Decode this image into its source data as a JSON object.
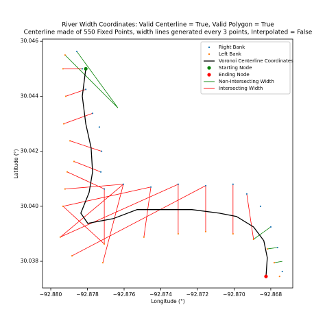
{
  "chart_data": {
    "type": "scatter",
    "title": "River Width Coordinates: Valid Centerline = True, Valid Polygon = True",
    "subtitle": "Centerline made of 550 Fixed Points, width lines generated every 3 points, Interpolated = False",
    "x_label": "Longitude (°)",
    "y_label": "Latitude (°)",
    "xlim": [
      -92.88045,
      -92.8668
    ],
    "ylim": [
      30.03703,
      30.04608
    ],
    "xticks": [
      {
        "value": -92.88,
        "label": "−92.880"
      },
      {
        "value": -92.878,
        "label": "−92.878"
      },
      {
        "value": -92.876,
        "label": "−92.876"
      },
      {
        "value": -92.874,
        "label": "−92.874"
      },
      {
        "value": -92.872,
        "label": "−92.872"
      },
      {
        "value": -92.87,
        "label": "−92.870"
      },
      {
        "value": -92.868,
        "label": "−92.868"
      }
    ],
    "yticks": [
      30.038,
      {
        "value": 30.04,
        "label": "30.040"
      },
      30.042,
      30.044,
      30.046
    ],
    "grid": false,
    "legend": "upper right",
    "series": [
      {
        "name": "Right Bank",
        "color": "#1f77b4",
        "kind": "points",
        "x": [
          -92.87858,
          -92.87828,
          -92.87809,
          -92.87772,
          -92.87735,
          -92.87723,
          -92.87727,
          -92.87708,
          -92.87604,
          -92.87454,
          -92.87305,
          -92.87155,
          -92.87006,
          -92.86931,
          -92.86856,
          -92.868,
          -92.86763,
          -92.86737
        ],
        "values": [
          30.04563,
          30.045,
          30.04425,
          30.04338,
          30.04288,
          30.042,
          30.04125,
          30.04063,
          30.0408,
          30.0407,
          30.0408,
          30.04075,
          30.0408,
          30.04045,
          30.04,
          30.03925,
          30.0385,
          30.03763
        ]
      },
      {
        "name": "Left Bank",
        "color": "#ff7f0e",
        "kind": "points",
        "x": [
          -92.87922,
          -92.87933,
          -92.87918,
          -92.87929,
          -92.87895,
          -92.87873,
          -92.8791,
          -92.87922,
          -92.87933,
          -92.87948,
          -92.87884,
          -92.87716,
          -92.87708,
          -92.87492,
          -92.87305,
          -92.87155,
          -92.87006,
          -92.86894,
          -92.86819,
          -92.86781,
          -92.86752
        ],
        "values": [
          30.0455,
          30.045,
          30.044,
          30.043,
          30.04238,
          30.04163,
          30.04125,
          30.04063,
          30.04,
          30.03888,
          30.0382,
          30.03795,
          30.03863,
          30.03888,
          30.039,
          30.03908,
          30.039,
          30.0388,
          30.03845,
          30.03795,
          30.03745
        ]
      },
      {
        "name": "Voronoi Centerline Coordinates",
        "color": "#000000",
        "kind": "line",
        "x": [
          -92.87809,
          -92.87828,
          -92.87809,
          -92.8778,
          -92.87772,
          -92.87791,
          -92.87836,
          -92.87798,
          -92.8766,
          -92.87529,
          -92.8738,
          -92.8723,
          -92.87081,
          -92.86987,
          -92.86894,
          -92.86838,
          -92.86819,
          -92.86826
        ],
        "values": [
          30.045,
          30.044,
          30.043,
          30.04213,
          30.04125,
          30.0405,
          30.03975,
          30.03938,
          30.03955,
          30.03988,
          30.03988,
          30.03988,
          30.03975,
          30.03963,
          30.03925,
          30.03875,
          30.03813,
          30.03745
        ]
      },
      {
        "name": "Starting Node",
        "color": "#008000",
        "kind": "node",
        "x": [
          -92.87809
        ],
        "values": [
          30.045
        ]
      },
      {
        "name": "Ending Node",
        "color": "#ff0000",
        "kind": "node",
        "x": [
          -92.86826
        ],
        "values": [
          30.03745
        ]
      },
      {
        "name": "Non-Intersecting Width",
        "color": "#008000",
        "kind": "segments",
        "segments": [
          [
            -92.87858,
            30.04563,
            -92.87634,
            30.04358
          ],
          [
            -92.87922,
            30.0455,
            -92.87634,
            30.04358
          ],
          [
            -92.86894,
            30.0388,
            -92.868,
            30.03925
          ],
          [
            -92.86819,
            30.03845,
            -92.86763,
            30.0385
          ],
          [
            -92.86781,
            30.03795,
            -92.86737,
            30.038
          ]
        ]
      },
      {
        "name": "Intersecting Width",
        "color": "#ff0000",
        "kind": "segments",
        "segments": [
          [
            -92.87933,
            30.045,
            -92.87828,
            30.045
          ],
          [
            -92.87918,
            30.044,
            -92.87809,
            30.04425
          ],
          [
            -92.87929,
            30.043,
            -92.87772,
            30.04338
          ],
          [
            -92.87895,
            30.04238,
            -92.87723,
            30.042
          ],
          [
            -92.87873,
            30.04163,
            -92.87727,
            30.04125
          ],
          [
            -92.8791,
            30.04125,
            -92.87708,
            30.04063
          ],
          [
            -92.87922,
            30.04063,
            -92.87604,
            30.0408
          ],
          [
            -92.87933,
            30.04,
            -92.87454,
            30.0407
          ],
          [
            -92.87948,
            30.03888,
            -92.87305,
            30.0408
          ],
          [
            -92.87884,
            30.0382,
            -92.87155,
            30.04075
          ],
          [
            -92.87716,
            30.03795,
            -92.87604,
            30.0408
          ],
          [
            -92.87708,
            30.03863,
            -92.87708,
            30.04063
          ],
          [
            -92.87492,
            30.03888,
            -92.87454,
            30.0407
          ],
          [
            -92.87305,
            30.039,
            -92.87305,
            30.0408
          ],
          [
            -92.87155,
            30.03908,
            -92.87155,
            30.04075
          ],
          [
            -92.87006,
            30.039,
            -92.87006,
            30.0408
          ],
          [
            -92.86894,
            30.0388,
            -92.86931,
            30.04045
          ],
          [
            -92.87933,
            30.04,
            -92.87708,
            30.03863
          ],
          [
            -92.87948,
            30.03888,
            -92.87604,
            30.0408
          ]
        ]
      }
    ]
  }
}
